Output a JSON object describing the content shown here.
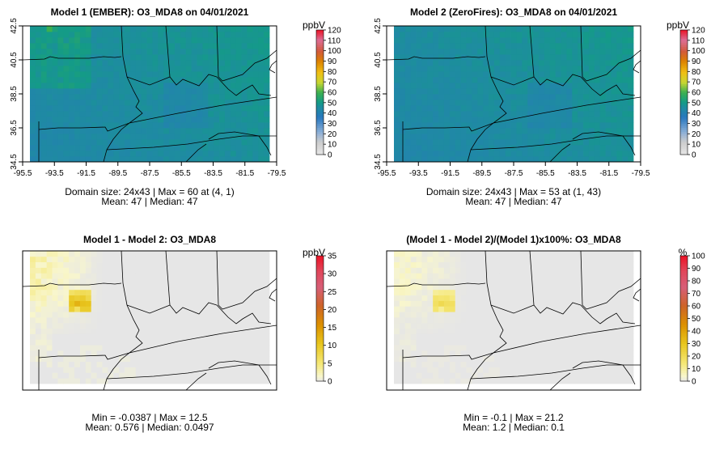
{
  "chart_data": [
    {
      "type": "heatmap",
      "title": "Model 1 (EMBER): O3_MDA8 on 04/01/2021",
      "xlim": [
        -95.5,
        -79.5
      ],
      "ylim": [
        34.5,
        42.5
      ],
      "x_ticks": [
        "-95.5",
        "-93.5",
        "-91.5",
        "-89.5",
        "-87.5",
        "-85.5",
        "-83.5",
        "-81.5",
        "-79.5"
      ],
      "y_ticks": [
        "34.5",
        "36.5",
        "38.5",
        "40.5",
        "42.5"
      ],
      "legend_unit": "ppbV",
      "legend_ticks": [
        "0",
        "10",
        "20",
        "30",
        "40",
        "50",
        "60",
        "70",
        "80",
        "90",
        "100",
        "110",
        "120"
      ],
      "legend_max": 120,
      "stats_line1": "Domain size: 24x43 | Max = 60 at (4, 1)",
      "stats_line2": "Mean: 47 |  Median: 47",
      "field": {
        "mean": 47,
        "max": 60
      }
    },
    {
      "type": "heatmap",
      "title": "Model 2 (ZeroFires): O3_MDA8 on 04/01/2021",
      "xlim": [
        -95.5,
        -79.5
      ],
      "ylim": [
        34.5,
        42.5
      ],
      "x_ticks": [
        "-95.5",
        "-93.5",
        "-91.5",
        "-89.5",
        "-87.5",
        "-85.5",
        "-83.5",
        "-81.5",
        "-79.5"
      ],
      "y_ticks": [
        "34.5",
        "36.5",
        "38.5",
        "40.5",
        "42.5"
      ],
      "legend_unit": "ppbV",
      "legend_ticks": [
        "0",
        "10",
        "20",
        "30",
        "40",
        "50",
        "60",
        "70",
        "80",
        "90",
        "100",
        "110",
        "120"
      ],
      "legend_max": 120,
      "stats_line1": "Domain size: 24x43 | Max = 53 at (1, 43)",
      "stats_line2": "Mean: 47 |  Median: 47",
      "field": {
        "mean": 47,
        "max": 53
      }
    },
    {
      "type": "heatmap",
      "title": "Model 1 - Model 2: O3_MDA8",
      "legend_unit": "ppbV",
      "legend_ticks": [
        "0",
        "5",
        "10",
        "15",
        "20",
        "25",
        "30",
        "35"
      ],
      "legend_max": 35,
      "stats_line1": "Min = -0.0387 | Max = 12.5",
      "stats_line2": "Mean: 0.576 |  Median: 0.0497",
      "field": {
        "min": -0.0387,
        "max": 12.5,
        "mean": 0.576
      }
    },
    {
      "type": "heatmap",
      "title": "(Model 1 - Model 2)/(Model 1)x100%: O3_MDA8",
      "legend_unit": "%",
      "legend_ticks": [
        "0",
        "10",
        "20",
        "30",
        "40",
        "50",
        "60",
        "70",
        "80",
        "90",
        "100"
      ],
      "legend_max": 100,
      "stats_line1": "Min = -0.1 | Max = 21.2",
      "stats_line2": "Mean: 1.2 | Median: 0.1",
      "field": {
        "min": -0.1,
        "max": 21.2,
        "mean": 1.2
      }
    }
  ],
  "colors": {
    "frame": "#000000",
    "grey_na": "#e6e6e6"
  }
}
